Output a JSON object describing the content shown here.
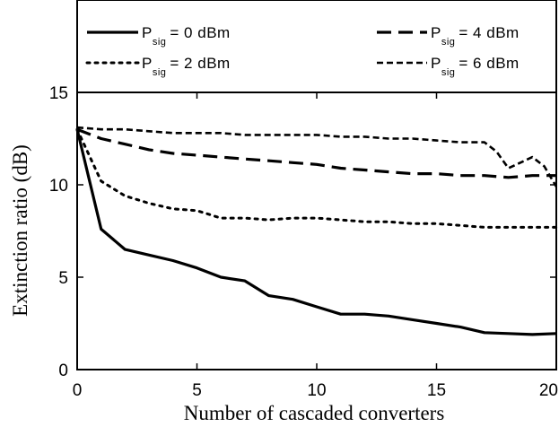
{
  "chart_data": {
    "type": "line",
    "xlabel": "Number of cascaded converters",
    "ylabel": "Extinction ratio (dB)",
    "xlim": [
      0,
      20
    ],
    "ylim": [
      0,
      15
    ],
    "xticks": [
      0,
      5,
      10,
      15,
      20
    ],
    "yticks": [
      0,
      5,
      10,
      15
    ],
    "grid": false,
    "legend_position": "top, outside plot area (2 columns)",
    "series": [
      {
        "name_main": "P",
        "name_sub": "sig",
        "name_rest": "= 0 dBm",
        "style": "solid",
        "x": [
          0,
          1,
          2,
          3,
          4,
          5,
          6,
          7,
          8,
          9,
          10,
          11,
          12,
          13,
          14,
          15,
          16,
          17,
          18,
          19,
          20
        ],
        "y": [
          13.0,
          7.6,
          6.5,
          6.2,
          5.9,
          5.5,
          5.0,
          4.8,
          4.0,
          3.8,
          3.4,
          3.0,
          3.0,
          2.9,
          2.7,
          2.5,
          2.3,
          2.0,
          1.95,
          1.9,
          1.95
        ]
      },
      {
        "name_main": "P",
        "name_sub": "sig",
        "name_rest": "= 4 dBm",
        "style": "long-dash",
        "x": [
          0,
          1,
          2,
          3,
          4,
          5,
          6,
          7,
          8,
          9,
          10,
          11,
          12,
          13,
          14,
          15,
          16,
          17,
          18,
          19,
          20
        ],
        "y": [
          13.0,
          12.5,
          12.2,
          11.9,
          11.7,
          11.6,
          11.5,
          11.4,
          11.3,
          11.2,
          11.1,
          10.9,
          10.8,
          10.7,
          10.6,
          10.6,
          10.5,
          10.5,
          10.4,
          10.5,
          10.5
        ]
      },
      {
        "name_main": "P",
        "name_sub": "sig",
        "name_rest": "= 2 dBm",
        "style": "dotted",
        "x": [
          0,
          1,
          2,
          3,
          4,
          5,
          6,
          7,
          8,
          9,
          10,
          11,
          12,
          13,
          14,
          15,
          16,
          17,
          18,
          19,
          20
        ],
        "y": [
          13.0,
          10.2,
          9.4,
          9.0,
          8.7,
          8.6,
          8.2,
          8.2,
          8.1,
          8.2,
          8.2,
          8.1,
          8.0,
          8.0,
          7.9,
          7.9,
          7.8,
          7.7,
          7.7,
          7.7,
          7.7
        ]
      },
      {
        "name_main": "P",
        "name_sub": "sig",
        "name_rest": "= 6 dBm",
        "style": "short-dash",
        "x": [
          0,
          1,
          2,
          3,
          4,
          5,
          6,
          7,
          8,
          9,
          10,
          11,
          12,
          13,
          14,
          15,
          16,
          17,
          17.5,
          18,
          18.5,
          19,
          19.5,
          20
        ],
        "y": [
          13.1,
          13.0,
          13.0,
          12.9,
          12.8,
          12.8,
          12.8,
          12.7,
          12.7,
          12.7,
          12.7,
          12.6,
          12.6,
          12.5,
          12.5,
          12.4,
          12.3,
          12.3,
          11.8,
          10.9,
          11.2,
          11.5,
          11.0,
          9.9
        ]
      }
    ]
  }
}
